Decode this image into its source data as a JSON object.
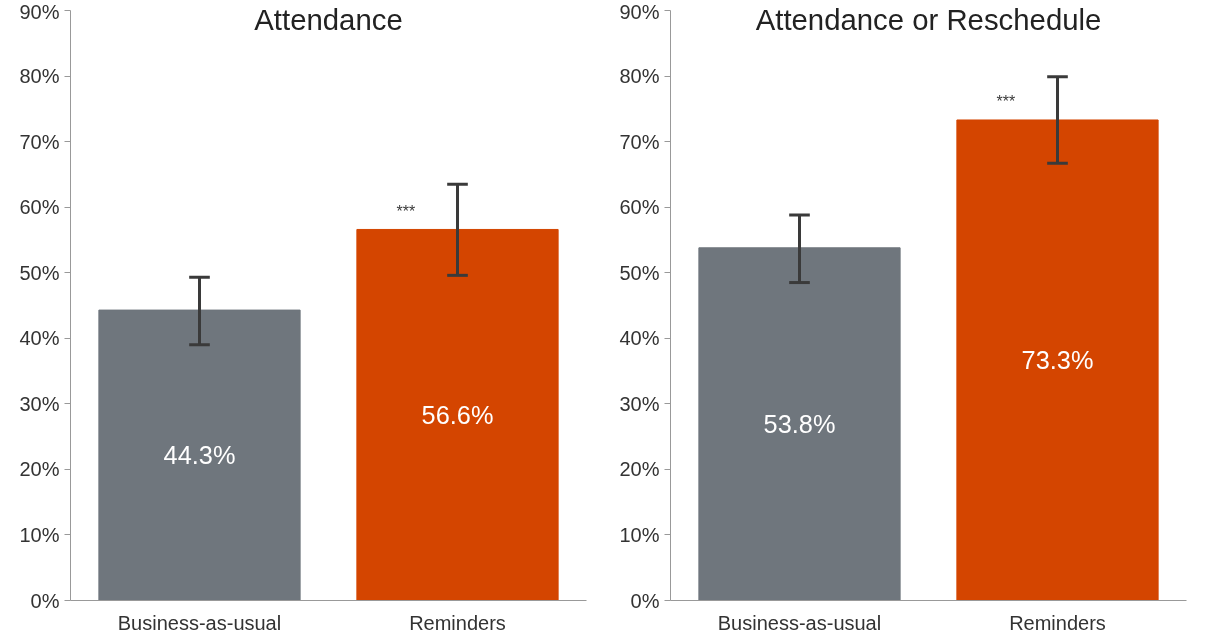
{
  "chart_data": [
    {
      "type": "bar",
      "title": "Attendance",
      "categories": [
        "Business-as-usual",
        "Reminders"
      ],
      "values": [
        44.3,
        56.6
      ],
      "colors": [
        "#6f767d",
        "#d44500"
      ],
      "errors": [
        [
          39.0,
          49.3
        ],
        [
          49.6,
          63.5
        ]
      ],
      "value_labels": [
        "44.3%",
        "56.6%"
      ],
      "ylim": [
        0,
        90
      ],
      "yticks": [
        {
          "value": 0,
          "label": "0%"
        },
        {
          "value": 10,
          "label": "10%"
        },
        {
          "value": 20,
          "label": "20%"
        },
        {
          "value": 30,
          "label": "30%"
        },
        {
          "value": 40,
          "label": "40%"
        },
        {
          "value": 50,
          "label": "50%"
        },
        {
          "value": 60,
          "label": "60%"
        },
        {
          "value": 70,
          "label": "70%"
        },
        {
          "value": 80,
          "label": "80%"
        },
        {
          "value": 90,
          "label": "90%"
        }
      ],
      "grid": false,
      "annotations": [
        {
          "text": "***",
          "x": "Reminders",
          "y": 56.6
        }
      ]
    },
    {
      "type": "bar",
      "title": "Attendance or Reschedule",
      "categories": [
        "Business-as-usual",
        "Reminders"
      ],
      "values": [
        53.8,
        73.3
      ],
      "colors": [
        "#6f767d",
        "#d44500"
      ],
      "errors": [
        [
          48.5,
          58.8
        ],
        [
          66.7,
          79.9
        ]
      ],
      "value_labels": [
        "53.8%",
        "73.3%"
      ],
      "ylim": [
        0,
        90
      ],
      "yticks": [
        {
          "value": 0,
          "label": "0%"
        },
        {
          "value": 10,
          "label": "10%"
        },
        {
          "value": 20,
          "label": "20%"
        },
        {
          "value": 30,
          "label": "30%"
        },
        {
          "value": 40,
          "label": "40%"
        },
        {
          "value": 50,
          "label": "50%"
        },
        {
          "value": 60,
          "label": "60%"
        },
        {
          "value": 70,
          "label": "70%"
        },
        {
          "value": 80,
          "label": "80%"
        },
        {
          "value": 90,
          "label": "90%"
        }
      ],
      "grid": false,
      "annotations": [
        {
          "text": "***",
          "x": "Reminders",
          "y": 73.3
        }
      ]
    }
  ]
}
